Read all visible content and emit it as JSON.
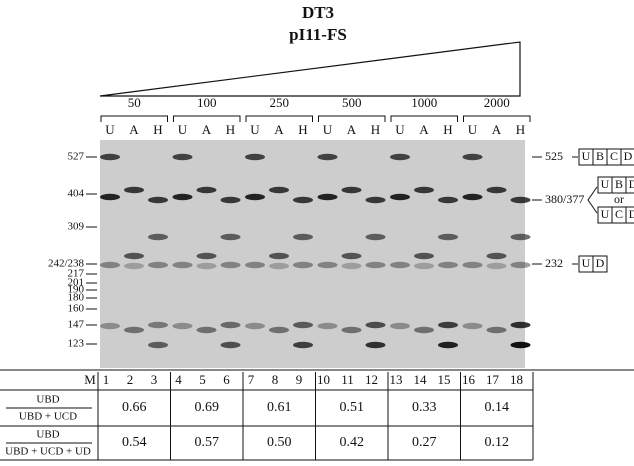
{
  "header": {
    "title": "DT3",
    "subtitle": "pI11-FS"
  },
  "concentrations": [
    "50",
    "100",
    "250",
    "500",
    "1000",
    "2000"
  ],
  "lanes": [
    "U",
    "A",
    "H",
    "U",
    "A",
    "H",
    "U",
    "A",
    "H",
    "U",
    "A",
    "H",
    "U",
    "A",
    "H",
    "U",
    "A",
    "H"
  ],
  "markers": [
    "527",
    "404",
    "309",
    "242/238",
    "217",
    "201",
    "190",
    "180",
    "160",
    "147",
    "123"
  ],
  "products": [
    {
      "size": "525",
      "boxes": [
        "U",
        "B",
        "C",
        "D"
      ]
    },
    {
      "size": "380/377",
      "boxes": [
        "U",
        "B",
        "D"
      ],
      "or": "or",
      "alt_boxes": [
        "U",
        "C",
        "D"
      ]
    },
    {
      "size": "232",
      "boxes": [
        "U",
        "D"
      ]
    }
  ],
  "table": {
    "marker": "M",
    "lane_numbers": [
      "1",
      "2",
      "3",
      "4",
      "5",
      "6",
      "7",
      "8",
      "9",
      "10",
      "11",
      "12",
      "13",
      "14",
      "15",
      "16",
      "17",
      "18"
    ],
    "rows": [
      {
        "numerator": "UBD",
        "denominator": "UBD + UCD",
        "values": [
          "0.66",
          "0.69",
          "0.61",
          "0.51",
          "0.33",
          "0.14"
        ]
      },
      {
        "numerator": "UBD",
        "denominator": "UBD + UCD + UD",
        "values": [
          "0.54",
          "0.57",
          "0.50",
          "0.42",
          "0.27",
          "0.12"
        ]
      }
    ]
  }
}
